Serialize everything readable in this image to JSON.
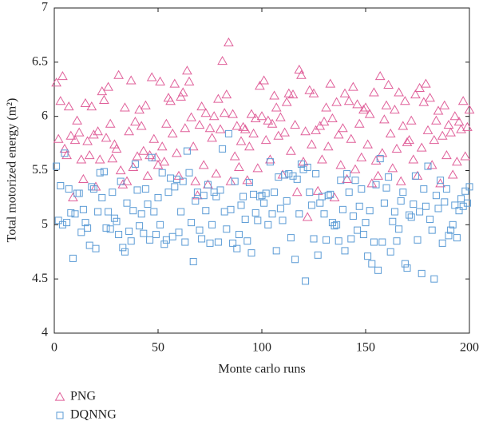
{
  "chart_data": {
    "type": "scatter",
    "xlabel": "Monte carlo runs",
    "ylabel": "Total motorized energy (m²)",
    "xlim": [
      0,
      200
    ],
    "xticks": [
      0,
      50,
      100,
      150,
      200
    ],
    "ylim": [
      4,
      7
    ],
    "yticks": [
      4,
      4.5,
      5,
      5.5,
      6,
      6.5,
      7
    ],
    "legend": "bottom-left",
    "x": [
      1,
      2,
      3,
      4,
      5,
      6,
      7,
      8,
      9,
      10,
      11,
      12,
      13,
      14,
      15,
      16,
      17,
      18,
      19,
      20,
      21,
      22,
      23,
      24,
      25,
      26,
      27,
      28,
      29,
      30,
      31,
      32,
      33,
      34,
      35,
      36,
      37,
      38,
      39,
      40,
      41,
      42,
      43,
      44,
      45,
      46,
      47,
      48,
      49,
      50,
      51,
      52,
      53,
      54,
      55,
      56,
      57,
      58,
      59,
      60,
      61,
      62,
      63,
      64,
      65,
      66,
      67,
      68,
      69,
      70,
      71,
      72,
      73,
      74,
      75,
      76,
      77,
      78,
      79,
      80,
      81,
      82,
      83,
      84,
      85,
      86,
      87,
      88,
      89,
      90,
      91,
      92,
      93,
      94,
      95,
      96,
      97,
      98,
      99,
      100,
      101,
      102,
      103,
      104,
      105,
      106,
      107,
      108,
      109,
      110,
      111,
      112,
      113,
      114,
      115,
      116,
      117,
      118,
      119,
      120,
      121,
      122,
      123,
      124,
      125,
      126,
      127,
      128,
      129,
      130,
      131,
      132,
      133,
      134,
      135,
      136,
      137,
      138,
      139,
      140,
      141,
      142,
      143,
      144,
      145,
      146,
      147,
      148,
      149,
      150,
      151,
      152,
      153,
      154,
      155,
      156,
      157,
      158,
      159,
      160,
      161,
      162,
      163,
      164,
      165,
      166,
      167,
      168,
      169,
      170,
      171,
      172,
      173,
      174,
      175,
      176,
      177,
      178,
      179,
      180,
      181,
      182,
      183,
      184,
      185,
      186,
      187,
      188,
      189,
      190,
      191,
      192,
      193,
      194,
      195,
      196,
      197,
      198,
      199,
      200
    ],
    "series": [
      {
        "name": "PNG",
        "color": "#e0609a",
        "marker": "triangle",
        "values": [
          6.31,
          5.79,
          6.14,
          6.37,
          5.7,
          5.64,
          6.09,
          5.82,
          5.25,
          5.78,
          5.96,
          5.85,
          5.6,
          5.42,
          6.12,
          5.77,
          5.64,
          6.09,
          5.83,
          5.35,
          5.86,
          5.6,
          6.23,
          6.15,
          5.8,
          6.27,
          5.93,
          5.61,
          5.74,
          5.7,
          6.38,
          5.5,
          5.37,
          6.08,
          5.4,
          5.86,
          6.33,
          5.53,
          5.95,
          5.63,
          6.06,
          5.91,
          5.68,
          6.1,
          5.45,
          5.64,
          6.36,
          5.79,
          5.62,
          5.55,
          6.32,
          5.72,
          5.58,
          5.93,
          6.17,
          6.14,
          5.84,
          6.3,
          5.66,
          5.45,
          6.18,
          6.22,
          5.89,
          6.42,
          6.32,
          5.99,
          5.72,
          5.4,
          5.27,
          5.92,
          6.09,
          5.55,
          6.03,
          5.37,
          5.89,
          5.8,
          6.0,
          5.47,
          6.16,
          5.88,
          6.51,
          6.03,
          6.2,
          6.68,
          5.4,
          6.02,
          5.63,
          5.91,
          5.53,
          5.77,
          5.9,
          5.88,
          5.41,
          5.72,
          6.02,
          5.84,
          5.98,
          5.52,
          6.28,
          6.0,
          6.33,
          5.78,
          5.96,
          5.6,
          5.93,
          6.19,
          6.08,
          5.82,
          5.99,
          5.46,
          5.85,
          6.13,
          6.21,
          5.68,
          6.2,
          5.92,
          5.3,
          6.43,
          6.38,
          5.58,
          5.86,
          5.07,
          6.24,
          5.74,
          6.21,
          5.87,
          5.31,
          5.91,
          5.6,
          5.95,
          6.08,
          5.72,
          6.3,
          5.98,
          5.25,
          6.13,
          5.83,
          5.55,
          5.89,
          6.21,
          5.42,
          6.14,
          5.79,
          6.27,
          5.51,
          6.11,
          5.93,
          5.62,
          6.06,
          6.08,
          5.74,
          6.02,
          5.38,
          6.22,
          5.59,
          5.45,
          6.37,
          5.66,
          5.97,
          6.1,
          6.29,
          5.84,
          5.52,
          6.06,
          5.7,
          6.22,
          5.4,
          5.91,
          6.14,
          5.76,
          5.78,
          5.96,
          5.6,
          6.2,
          5.45,
          6.26,
          5.71,
          6.13,
          6.3,
          5.87,
          6.17,
          5.55,
          5.78,
          5.96,
          6.05,
          5.38,
          5.82,
          6.1,
          5.64,
          5.92,
          5.85,
          5.46,
          6.0,
          5.58,
          5.95,
          5.88,
          6.14,
          5.63,
          5.9,
          6.06
        ]
      },
      {
        "name": "DQNNG",
        "color": "#5b9bd5",
        "marker": "square",
        "values": [
          5.54,
          5.04,
          5.36,
          5.0,
          5.66,
          5.02,
          5.33,
          5.11,
          4.69,
          5.1,
          5.29,
          5.29,
          4.93,
          5.14,
          5.02,
          4.97,
          4.81,
          5.35,
          5.33,
          4.78,
          5.12,
          5.48,
          5.25,
          5.49,
          4.97,
          5.12,
          4.96,
          5.3,
          5.06,
          5.03,
          4.91,
          5.4,
          4.79,
          4.75,
          5.2,
          4.94,
          4.85,
          5.13,
          5.56,
          5.32,
          4.99,
          5.1,
          4.92,
          5.33,
          5.19,
          4.86,
          5.62,
          5.12,
          4.91,
          5.25,
          5.0,
          5.48,
          4.82,
          4.86,
          5.3,
          5.43,
          4.89,
          5.35,
          5.42,
          4.93,
          5.12,
          5.4,
          4.84,
          5.68,
          5.48,
          5.02,
          4.66,
          5.22,
          5.3,
          4.95,
          4.87,
          5.27,
          5.13,
          5.37,
          4.83,
          5.0,
          5.3,
          5.26,
          4.84,
          5.32,
          5.7,
          5.12,
          4.96,
          5.84,
          5.14,
          4.83,
          5.4,
          4.78,
          4.91,
          5.18,
          5.26,
          5.05,
          4.85,
          5.39,
          4.74,
          5.28,
          5.11,
          5.04,
          5.26,
          5.27,
          5.2,
          5.29,
          5.0,
          5.58,
          5.1,
          5.3,
          4.76,
          5.44,
          5.15,
          5.04,
          5.46,
          5.22,
          5.47,
          4.88,
          5.45,
          4.68,
          5.42,
          5.1,
          5.56,
          5.51,
          4.48,
          5.53,
          5.3,
          5.18,
          4.87,
          5.47,
          4.72,
          5.2,
          5.26,
          5.1,
          4.86,
          5.27,
          5.28,
          5.02,
          4.99,
          5.0,
          4.85,
          5.41,
          5.14,
          4.76,
          5.47,
          5.3,
          4.87,
          5.08,
          5.41,
          4.95,
          5.17,
          5.33,
          4.91,
          5.02,
          4.71,
          5.13,
          4.64,
          4.84,
          5.37,
          4.58,
          5.61,
          4.84,
          5.2,
          5.34,
          5.44,
          4.75,
          5.03,
          5.12,
          4.85,
          4.96,
          5.22,
          5.3,
          4.64,
          4.6,
          5.09,
          5.07,
          5.19,
          5.45,
          4.86,
          5.12,
          4.55,
          5.33,
          5.17,
          5.54,
          5.05,
          4.95,
          4.5,
          5.27,
          5.15,
          5.41,
          4.83,
          5.21,
          5.33,
          4.9,
          4.95,
          5.0,
          5.18,
          4.88,
          5.13,
          5.24,
          5.17,
          5.31,
          5.2,
          5.35
        ]
      }
    ]
  }
}
